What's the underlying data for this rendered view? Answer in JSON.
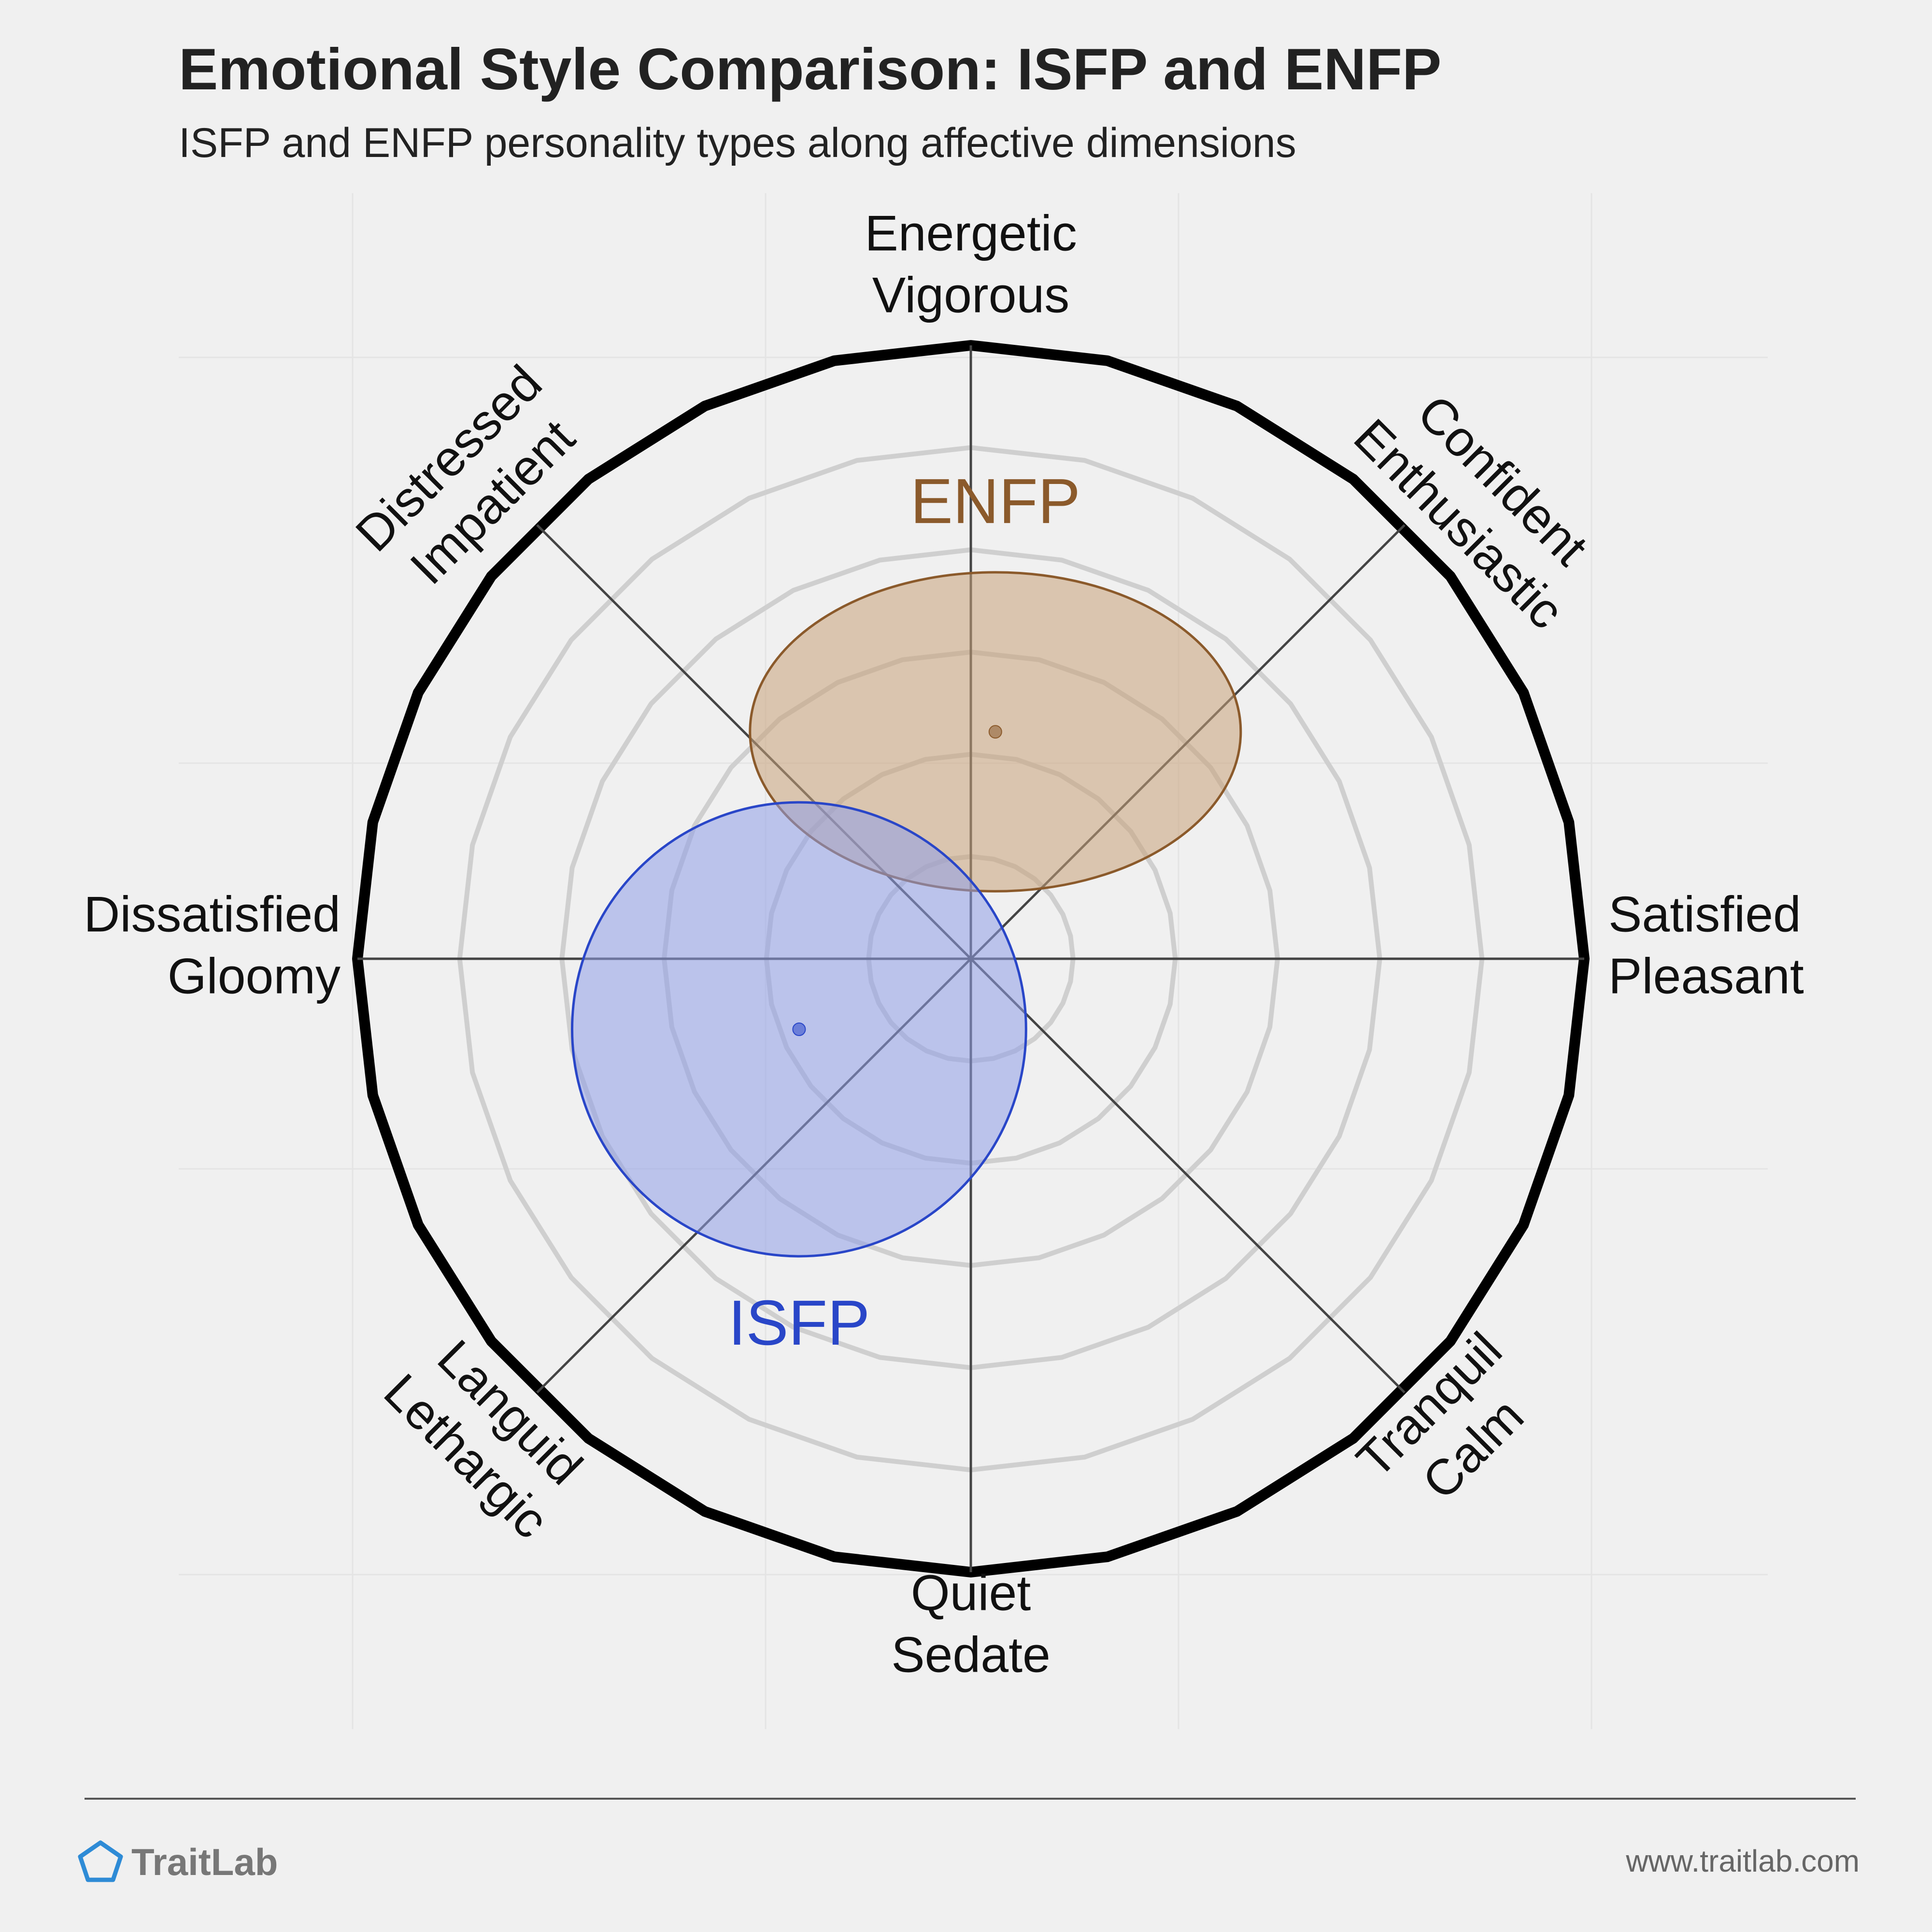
{
  "title": "Emotional Style Comparison: ISFP and ENFP",
  "subtitle": "ISFP and ENFP personality types along affective dimensions",
  "footer": {
    "brand": "TraitLab",
    "url": "www.traitlab.com"
  },
  "chart_data": {
    "type": "scatter",
    "grid": true,
    "rings": 6,
    "axis_range": [
      -1,
      1
    ],
    "axes": [
      {
        "id": "top",
        "lines": [
          "Energetic",
          "Vigorous"
        ]
      },
      {
        "id": "top-right",
        "lines": [
          "Confident",
          "Enthusiastic"
        ]
      },
      {
        "id": "right",
        "lines": [
          "Satisfied",
          "Pleasant"
        ]
      },
      {
        "id": "bottom-right",
        "lines": [
          "Tranquil",
          "Calm"
        ]
      },
      {
        "id": "bottom",
        "lines": [
          "Quiet",
          "Sedate"
        ]
      },
      {
        "id": "bottom-left",
        "lines": [
          "Languid",
          "Lethargic"
        ]
      },
      {
        "id": "left",
        "lines": [
          "Dissatisfied",
          "Gloomy"
        ]
      },
      {
        "id": "top-left",
        "lines": [
          "Distressed",
          "Impatient"
        ]
      }
    ],
    "series": [
      {
        "name": "ENFP",
        "color": "#8b5a2b",
        "fill": "#c8a27a",
        "x": 0.04,
        "y": 0.37,
        "spread_x": 0.4,
        "spread_y": 0.26
      },
      {
        "name": "ISFP",
        "color": "#2946c8",
        "fill": "#8f9ee8",
        "x": -0.28,
        "y": -0.115,
        "spread_x": 0.37,
        "spread_y": 0.37
      }
    ]
  },
  "colors": {
    "background": "#f0f0f0",
    "grid": "#cfcfcf",
    "outer_ring": "#000000",
    "axis": "#444444"
  }
}
